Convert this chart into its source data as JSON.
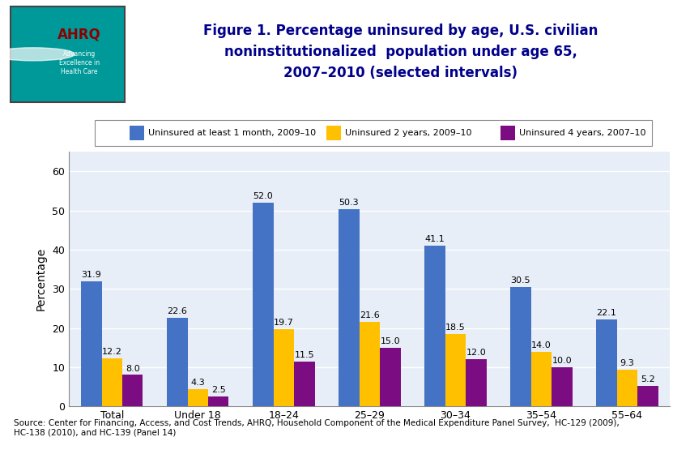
{
  "categories": [
    "Total",
    "Under 18",
    "18–24",
    "25–29",
    "30–34",
    "35–54",
    "55–64"
  ],
  "series": [
    {
      "label": "Uninsured at least 1 month, 2009–10",
      "color": "#4472C4",
      "values": [
        31.9,
        22.6,
        52.0,
        50.3,
        41.1,
        30.5,
        22.1
      ]
    },
    {
      "label": "Uninsured 2 years, 2009–10",
      "color": "#FFC000",
      "values": [
        12.2,
        4.3,
        19.7,
        21.6,
        18.5,
        14.0,
        9.3
      ]
    },
    {
      "label": "Uninsured 4 years, 2007–10",
      "color": "#7B0C82",
      "values": [
        8.0,
        2.5,
        11.5,
        15.0,
        12.0,
        10.0,
        5.2
      ]
    }
  ],
  "ylabel": "Percentage",
  "ylim": [
    0,
    65
  ],
  "yticks": [
    0,
    10,
    20,
    30,
    40,
    50,
    60
  ],
  "title_line1": "Figure 1. Percentage uninsured by age, U.S. civilian",
  "title_line2": "noninstitutionalized  population under age 65,",
  "title_line3": "2007–2010 (selected intervals)",
  "source_text": "Source: Center for Financing, Access, and Cost Trends, AHRQ, Household Component of the Medical Expenditure Panel Survey,  HC-129 (2009),\nHC-138 (2010), and HC-139 (Panel 14)",
  "plot_bg_color": "#E8EEF7",
  "fig_bg_color": "#FFFFFF",
  "header_bar_color": "#00008B",
  "bar_width": 0.24,
  "title_color": "#00008B",
  "legend_fontsize": 8.0,
  "label_fontsize": 8.0,
  "tick_fontsize": 9,
  "ylabel_fontsize": 10,
  "logo_bg": "#009999",
  "logo_text_color": "#FFFFFF"
}
